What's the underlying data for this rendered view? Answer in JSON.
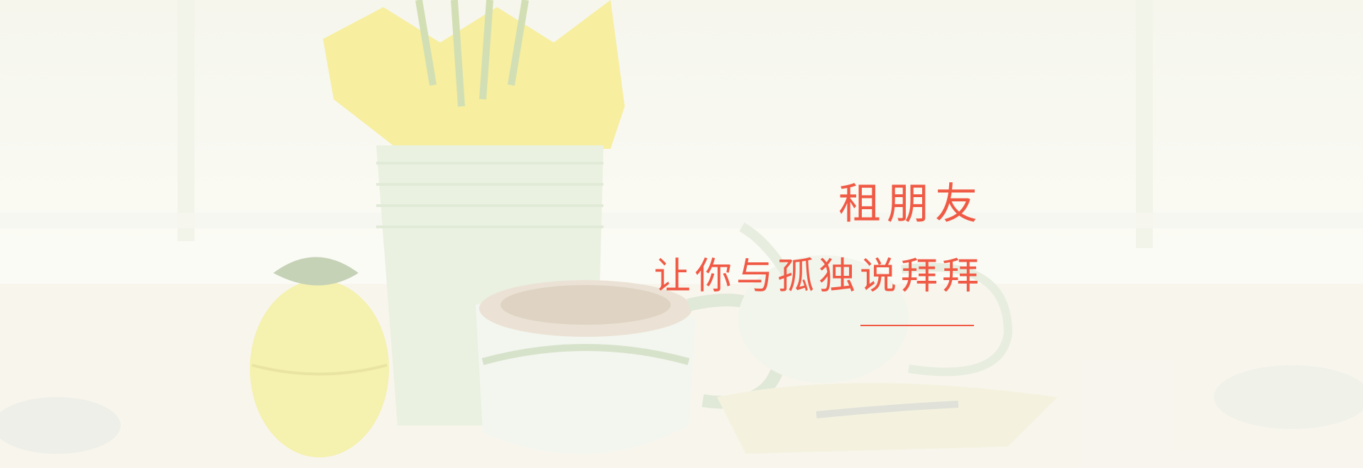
{
  "banner": {
    "headline": "租朋友",
    "subline": "让你与孤独说拜拜"
  },
  "colors": {
    "accent": "#f05a45",
    "background": "#fbfaf3"
  }
}
